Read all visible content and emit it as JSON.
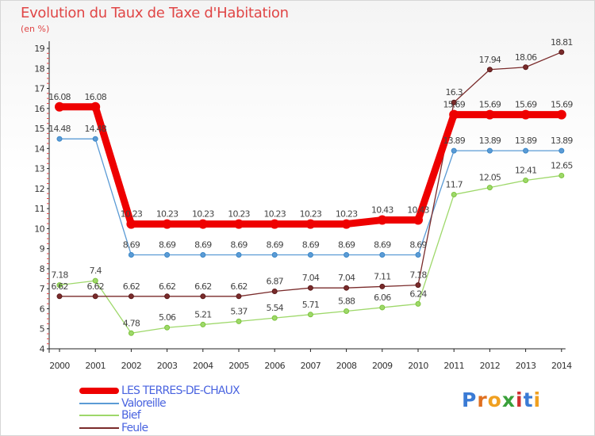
{
  "title": "Evolution du Taux de Taxe d'Habitation",
  "subtitle": "(en %)",
  "brand": {
    "letters": [
      "P",
      "r",
      "o",
      "x",
      "i",
      "t",
      "i"
    ],
    "colors": [
      "#3a7bd5",
      "#e07020",
      "#f0a020",
      "#3aa03a",
      "#d03030",
      "#3a7bd5",
      "#f0a020"
    ]
  },
  "chart_data": {
    "type": "line",
    "x": [
      2000,
      2001,
      2002,
      2003,
      2004,
      2005,
      2006,
      2007,
      2008,
      2009,
      2010,
      2011,
      2012,
      2013,
      2014
    ],
    "ylim": [
      4,
      19
    ],
    "yticks": [
      4,
      5,
      6,
      7,
      8,
      9,
      10,
      11,
      12,
      13,
      14,
      15,
      16,
      17,
      18,
      19
    ],
    "grid": false,
    "legend_position": "bottom-left",
    "series": [
      {
        "name": "LES TERRES-DE-CHAUX",
        "color": "#ee0000",
        "width": 9,
        "values": [
          16.08,
          16.08,
          10.23,
          10.23,
          10.23,
          10.23,
          10.23,
          10.23,
          10.23,
          10.43,
          10.43,
          15.69,
          15.69,
          15.69,
          15.69
        ],
        "labels": [
          "16.08",
          "16.08",
          "10.23",
          "10.23",
          "10.23",
          "10.23",
          "10.23",
          "10.23",
          "10.23",
          "10.43",
          "10.43",
          "15.69",
          "15.69",
          "15.69",
          "15.69"
        ]
      },
      {
        "name": "Valoreille",
        "color": "#5b9bd5",
        "marker": "#3a87c8",
        "width": 1.3,
        "values": [
          14.48,
          14.48,
          8.69,
          8.69,
          8.69,
          8.69,
          8.69,
          8.69,
          8.69,
          8.69,
          8.69,
          13.89,
          13.89,
          13.89,
          13.89
        ],
        "labels": [
          "14.48",
          "14.48",
          "8.69",
          "8.69",
          "8.69",
          "8.69",
          "8.69",
          "8.69",
          "8.69",
          "8.69",
          "8.69",
          "13.89",
          "13.89",
          "13.89",
          "13.89"
        ]
      },
      {
        "name": "Bief",
        "color": "#9ed86a",
        "marker": "#7cc43c",
        "width": 1.3,
        "values": [
          7.18,
          7.4,
          4.78,
          5.06,
          5.21,
          5.37,
          5.54,
          5.71,
          5.88,
          6.06,
          6.24,
          11.7,
          12.05,
          12.41,
          12.65
        ],
        "labels": [
          "7.18",
          "7.4",
          "4.78",
          "5.06",
          "5.21",
          "5.37",
          "5.54",
          "5.71",
          "5.88",
          "6.06",
          "6.24",
          "11.7",
          "12.05",
          "12.41",
          "12.65"
        ]
      },
      {
        "name": "Feule",
        "color": "#7a2b2b",
        "marker": "#5a1a1a",
        "width": 1.3,
        "values": [
          6.62,
          6.62,
          6.62,
          6.62,
          6.62,
          6.62,
          6.87,
          7.04,
          7.04,
          7.11,
          7.18,
          16.3,
          17.94,
          18.06,
          18.81
        ],
        "labels": [
          "6.62",
          "6.62",
          "6.62",
          "6.62",
          "6.62",
          "6.62",
          "6.87",
          "7.04",
          "7.04",
          "7.11",
          "7.18",
          "16.3",
          "17.94",
          "18.06",
          "18.81"
        ]
      }
    ]
  }
}
